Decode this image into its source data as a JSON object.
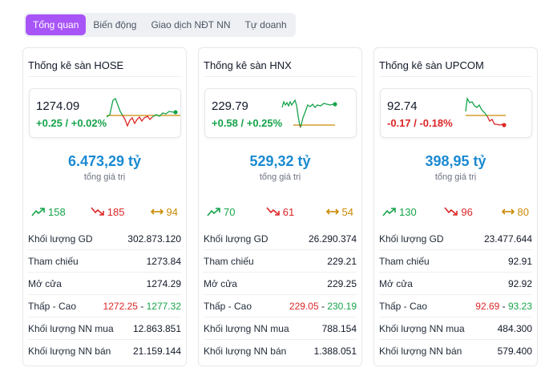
{
  "tabs": [
    {
      "label": "Tổng quan",
      "active": true
    },
    {
      "label": "Biến động"
    },
    {
      "label": "Giao dịch NĐT NN"
    },
    {
      "label": "Tự doanh"
    }
  ],
  "colors": {
    "up": "#16a34a",
    "down": "#dc2626",
    "ref": "#ca8a04",
    "value": "#1a8ad1",
    "tab_active": "#a855f7"
  },
  "exchanges": [
    {
      "title": "Thống kê sàn HOSE",
      "index": "1274.09",
      "change": "+0.25 / +0.02%",
      "direction": "up",
      "total_value": "6.473,29 tỷ",
      "total_label": "tổng giá trị",
      "advances": "158",
      "declines": "185",
      "unchanged": "94",
      "rows": {
        "volume_label": "Khối lượng GD",
        "volume": "302.873.120",
        "ref_label": "Tham chiếu",
        "ref": "1273.84",
        "open_label": "Mở cửa",
        "open": "1274.29",
        "range_label": "Thấp - Cao",
        "low": "1272.25",
        "high": "1277.32",
        "foreign_buy_label": "Khối lượng NN mua",
        "foreign_buy": "12.863.851",
        "foreign_sell_label": "Khối lượng NN bán",
        "foreign_sell": "21.159.144"
      }
    },
    {
      "title": "Thống kê sàn HNX",
      "index": "229.79",
      "change": "+0.58 / +0.25%",
      "direction": "up",
      "total_value": "529,32 tỷ",
      "total_label": "tổng giá trị",
      "advances": "70",
      "declines": "61",
      "unchanged": "54",
      "rows": {
        "volume_label": "Khối lượng GD",
        "volume": "26.290.374",
        "ref_label": "Tham chiếu",
        "ref": "229.21",
        "open_label": "Mở cửa",
        "open": "229.25",
        "range_label": "Thấp - Cao",
        "low": "229.05",
        "high": "230.19",
        "foreign_buy_label": "Khối lượng NN mua",
        "foreign_buy": "788.154",
        "foreign_sell_label": "Khối lượng NN bán",
        "foreign_sell": "1.388.051"
      }
    },
    {
      "title": "Thống kê sàn UPCOM",
      "index": "92.74",
      "change": "-0.17 / -0.18%",
      "direction": "down",
      "total_value": "398,95 tỷ",
      "total_label": "tổng giá trị",
      "advances": "130",
      "declines": "96",
      "unchanged": "80",
      "rows": {
        "volume_label": "Khối lượng GD",
        "volume": "23.477.644",
        "ref_label": "Tham chiếu",
        "ref": "92.91",
        "open_label": "Mở cửa",
        "open": "92.92",
        "range_label": "Thấp - Cao",
        "low": "92.69",
        "high": "93.23",
        "foreign_buy_label": "Khối lượng NN mua",
        "foreign_buy": "484.300",
        "foreign_sell_label": "Khối lượng NN bán",
        "foreign_sell": "579.400"
      }
    }
  ]
}
